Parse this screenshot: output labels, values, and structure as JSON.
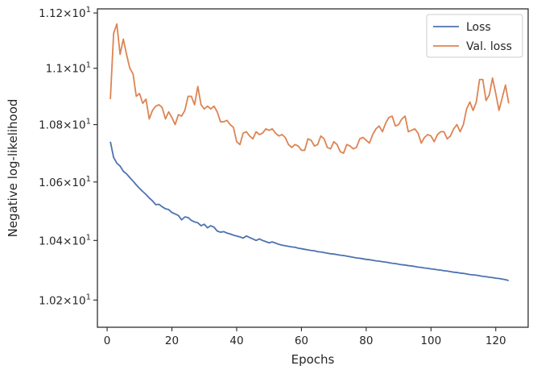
{
  "chart_data": {
    "type": "line",
    "xlabel": "Epochs",
    "ylabel": "Negative log-likelihood",
    "xlim": [
      -3,
      130
    ],
    "ylim": [
      10.11,
      11.215
    ],
    "yscale": "log",
    "xticks": [
      0,
      20,
      40,
      60,
      80,
      100,
      120
    ],
    "yticks": [
      10.2,
      10.4,
      10.6,
      10.8,
      11.0,
      11.2
    ],
    "ytick_labels": [
      {
        "mant": "1.02",
        "base": "10",
        "exp": "1"
      },
      {
        "mant": "1.04",
        "base": "10",
        "exp": "1"
      },
      {
        "mant": "1.06",
        "base": "10",
        "exp": "1"
      },
      {
        "mant": "1.08",
        "base": "10",
        "exp": "1"
      },
      {
        "mant": "1.1",
        "base": "10",
        "exp": "1"
      },
      {
        "mant": "1.12",
        "base": "10",
        "exp": "1"
      }
    ],
    "times_symbol": "×",
    "grid": false,
    "legend_position": "top-right",
    "x": [
      1,
      2,
      3,
      4,
      5,
      6,
      7,
      8,
      9,
      10,
      11,
      12,
      13,
      14,
      15,
      16,
      17,
      18,
      19,
      20,
      21,
      22,
      23,
      24,
      25,
      26,
      27,
      28,
      29,
      30,
      31,
      32,
      33,
      34,
      35,
      36,
      37,
      38,
      39,
      40,
      41,
      42,
      43,
      44,
      45,
      46,
      47,
      48,
      49,
      50,
      51,
      52,
      53,
      54,
      55,
      56,
      57,
      58,
      59,
      60,
      61,
      62,
      63,
      64,
      65,
      66,
      67,
      68,
      69,
      70,
      71,
      72,
      73,
      74,
      75,
      76,
      77,
      78,
      79,
      80,
      81,
      82,
      83,
      84,
      85,
      86,
      87,
      88,
      89,
      90,
      91,
      92,
      93,
      94,
      95,
      96,
      97,
      98,
      99,
      100,
      101,
      102,
      103,
      104,
      105,
      106,
      107,
      108,
      109,
      110,
      111,
      112,
      113,
      114,
      115,
      116,
      117,
      118,
      119,
      120,
      121,
      122,
      123,
      124
    ],
    "series": [
      {
        "name": "Loss",
        "color": "#4c72b0",
        "values": [
          10.74,
          10.685,
          10.665,
          10.655,
          10.637,
          10.628,
          10.615,
          10.603,
          10.59,
          10.578,
          10.567,
          10.557,
          10.545,
          10.535,
          10.522,
          10.523,
          10.515,
          10.508,
          10.505,
          10.495,
          10.49,
          10.485,
          10.47,
          10.48,
          10.478,
          10.468,
          10.463,
          10.46,
          10.45,
          10.455,
          10.443,
          10.45,
          10.445,
          10.432,
          10.428,
          10.43,
          10.425,
          10.422,
          10.418,
          10.415,
          10.412,
          10.408,
          10.415,
          10.41,
          10.405,
          10.4,
          10.405,
          10.4,
          10.396,
          10.392,
          10.395,
          10.391,
          10.387,
          10.384,
          10.382,
          10.38,
          10.378,
          10.377,
          10.374,
          10.372,
          10.37,
          10.368,
          10.366,
          10.365,
          10.362,
          10.361,
          10.359,
          10.357,
          10.355,
          10.354,
          10.352,
          10.35,
          10.349,
          10.347,
          10.345,
          10.343,
          10.341,
          10.34,
          10.338,
          10.336,
          10.335,
          10.333,
          10.331,
          10.33,
          10.328,
          10.327,
          10.325,
          10.323,
          10.322,
          10.32,
          10.318,
          10.317,
          10.315,
          10.314,
          10.312,
          10.31,
          10.309,
          10.307,
          10.306,
          10.304,
          10.303,
          10.301,
          10.3,
          10.298,
          10.297,
          10.295,
          10.293,
          10.292,
          10.29,
          10.289,
          10.287,
          10.285,
          10.284,
          10.283,
          10.281,
          10.279,
          10.278,
          10.276,
          10.275,
          10.273,
          10.272,
          10.27,
          10.268,
          10.265
        ]
      },
      {
        "name": "Val. loss",
        "color": "#dd8452",
        "values": [
          10.89,
          11.125,
          11.16,
          11.05,
          11.105,
          11.05,
          11.0,
          10.98,
          10.9,
          10.91,
          10.875,
          10.89,
          10.82,
          10.85,
          10.865,
          10.87,
          10.86,
          10.82,
          10.845,
          10.825,
          10.8,
          10.835,
          10.83,
          10.85,
          10.9,
          10.9,
          10.87,
          10.935,
          10.87,
          10.855,
          10.865,
          10.855,
          10.865,
          10.845,
          10.81,
          10.81,
          10.815,
          10.8,
          10.79,
          10.74,
          10.73,
          10.77,
          10.775,
          10.76,
          10.75,
          10.775,
          10.765,
          10.77,
          10.785,
          10.78,
          10.785,
          10.77,
          10.76,
          10.765,
          10.755,
          10.73,
          10.72,
          10.73,
          10.725,
          10.71,
          10.71,
          10.75,
          10.745,
          10.725,
          10.73,
          10.76,
          10.75,
          10.72,
          10.715,
          10.74,
          10.73,
          10.705,
          10.7,
          10.73,
          10.725,
          10.715,
          10.72,
          10.75,
          10.755,
          10.745,
          10.735,
          10.765,
          10.785,
          10.795,
          10.775,
          10.805,
          10.825,
          10.83,
          10.795,
          10.8,
          10.82,
          10.83,
          10.775,
          10.78,
          10.785,
          10.77,
          10.735,
          10.755,
          10.765,
          10.76,
          10.74,
          10.765,
          10.775,
          10.775,
          10.75,
          10.76,
          10.785,
          10.8,
          10.775,
          10.8,
          10.855,
          10.88,
          10.85,
          10.88,
          10.96,
          10.96,
          10.885,
          10.905,
          10.965,
          10.91,
          10.85,
          10.895,
          10.94,
          10.875
        ]
      }
    ]
  }
}
